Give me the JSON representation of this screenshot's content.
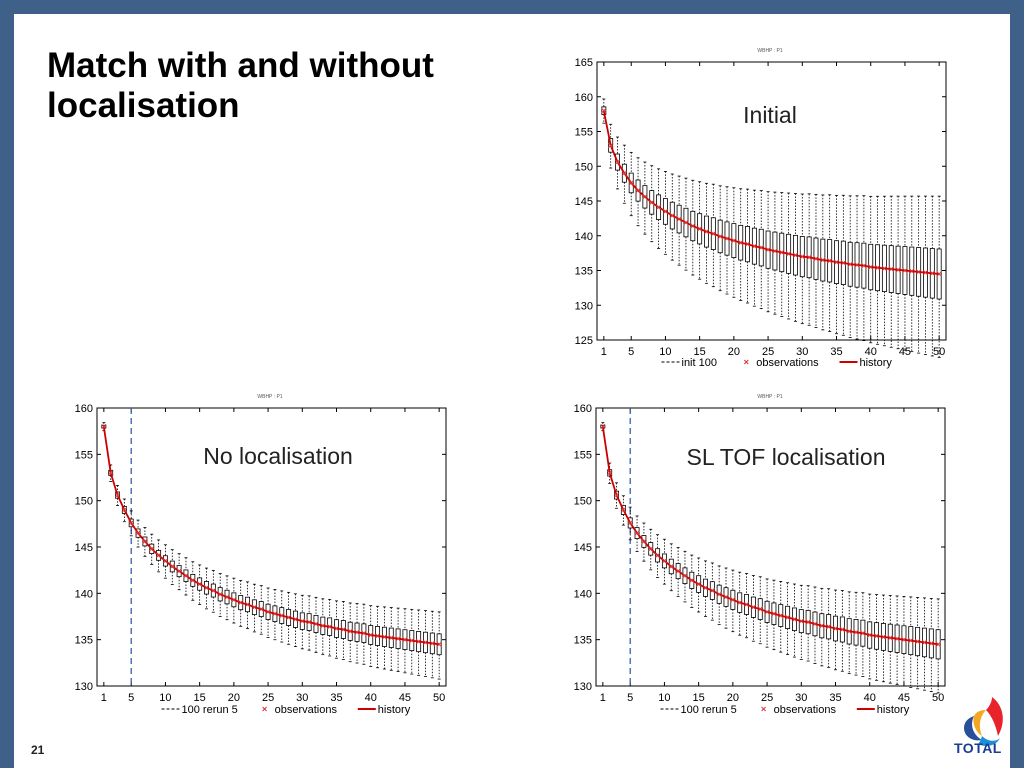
{
  "slide": {
    "title": "Match with and without localisation",
    "page_number": "21",
    "logo_text": "TOTAL",
    "frame_color": "#3e6089"
  },
  "chart_data": [
    {
      "type": "box",
      "title": "WBHP : P1",
      "annotation": "Initial",
      "x_ticks": [
        1,
        5,
        10,
        15,
        20,
        25,
        30,
        35,
        40,
        45,
        50
      ],
      "ylim": [
        125,
        165
      ],
      "y_ticks": [
        125,
        130,
        135,
        140,
        145,
        150,
        155,
        160,
        165
      ],
      "xlim": [
        0,
        51
      ],
      "cutoff_x": null,
      "spread": {
        "start": 1.2,
        "end": 8.0
      },
      "legend": [
        {
          "label": "init 100",
          "style": "dashed",
          "color": "#000000"
        },
        {
          "label": "observations",
          "style": "cross",
          "color": "#e03030"
        },
        {
          "label": "history",
          "style": "line",
          "color": "#cc0000"
        }
      ]
    },
    {
      "type": "box",
      "title": "WBHP : P1",
      "annotation": "No localisation",
      "x_ticks": [
        1,
        5,
        10,
        15,
        20,
        25,
        30,
        35,
        40,
        45,
        50
      ],
      "ylim": [
        130,
        160
      ],
      "y_ticks": [
        130,
        135,
        140,
        145,
        150,
        155,
        160
      ],
      "xlim": [
        0,
        51
      ],
      "cutoff_x": 5,
      "spread": {
        "start": 0.3,
        "end": 2.5
      },
      "legend": [
        {
          "label": "100 rerun 5",
          "style": "dashed",
          "color": "#000000"
        },
        {
          "label": "observations",
          "style": "cross",
          "color": "#e03030"
        },
        {
          "label": "history",
          "style": "line",
          "color": "#cc0000"
        }
      ]
    },
    {
      "type": "box",
      "title": "WBHP : P1",
      "annotation": "SL TOF localisation",
      "x_ticks": [
        1,
        5,
        10,
        15,
        20,
        25,
        30,
        35,
        40,
        45,
        50
      ],
      "ylim": [
        130,
        160
      ],
      "y_ticks": [
        130,
        135,
        140,
        145,
        150,
        155,
        160
      ],
      "xlim": [
        0,
        51
      ],
      "cutoff_x": 5,
      "spread": {
        "start": 0.3,
        "end": 3.5
      },
      "legend": [
        {
          "label": "100 rerun 5",
          "style": "dashed",
          "color": "#000000"
        },
        {
          "label": "observations",
          "style": "cross",
          "color": "#e03030"
        },
        {
          "label": "history",
          "style": "line",
          "color": "#cc0000"
        }
      ]
    }
  ],
  "history": {
    "x": [
      1,
      2,
      3,
      4,
      5,
      6,
      7,
      8,
      9,
      10,
      11,
      12,
      13,
      14,
      15,
      16,
      17,
      18,
      19,
      20,
      21,
      22,
      23,
      24,
      25,
      26,
      27,
      28,
      29,
      30,
      31,
      32,
      33,
      34,
      35,
      36,
      37,
      38,
      39,
      40,
      41,
      42,
      43,
      44,
      45,
      46,
      47,
      48,
      49,
      50
    ],
    "y": [
      158.0,
      153.0,
      150.6,
      149.0,
      147.6,
      146.5,
      145.6,
      144.8,
      144.1,
      143.5,
      142.9,
      142.4,
      141.9,
      141.4,
      141.0,
      140.6,
      140.3,
      139.9,
      139.6,
      139.3,
      139.0,
      138.8,
      138.5,
      138.3,
      138.0,
      137.8,
      137.6,
      137.4,
      137.2,
      137.0,
      136.9,
      136.7,
      136.5,
      136.4,
      136.2,
      136.1,
      135.9,
      135.8,
      135.7,
      135.5,
      135.4,
      135.3,
      135.2,
      135.1,
      135.0,
      134.9,
      134.8,
      134.7,
      134.6,
      134.5
    ]
  }
}
